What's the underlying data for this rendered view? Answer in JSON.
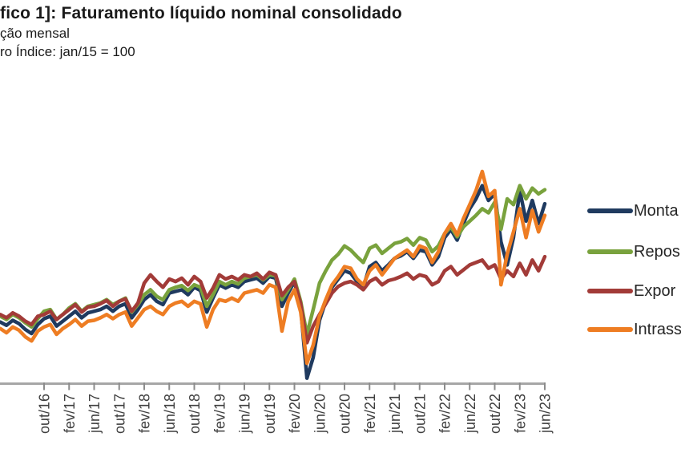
{
  "header": {
    "title": "fico 1]: Faturamento líquido nominal consolidado",
    "subtitle_line1": "ção mensal",
    "subtitle_line2": "ro Índice: jan/15 = 100"
  },
  "legend": {
    "position": "right",
    "items": [
      {
        "label": "Monta",
        "color": "#1f3a5f"
      },
      {
        "label": "Repos",
        "color": "#79a23d"
      },
      {
        "label": "Expor",
        "color": "#a23b38"
      },
      {
        "label": "Intrass",
        "color": "#ee7d23"
      }
    ]
  },
  "axis": {
    "line_color": "#a6a6a6",
    "tick_color": "#8c8c8c",
    "label_color": "#3f3f3f"
  },
  "chart_data": {
    "type": "line",
    "title": "fico 1]: Faturamento líquido nominal consolidado",
    "subtitle": "ção mensal",
    "index_base_note": "ro Índice: jan/15 = 100",
    "grid": false,
    "legend_position": "right",
    "ylim": [
      25,
      300
    ],
    "y_axis_visible": false,
    "x": [
      "mar/16",
      "abr/16",
      "mai/16",
      "jun/16",
      "jul/16",
      "ago/16",
      "set/16",
      "out/16",
      "nov/16",
      "dez/16",
      "jan/17",
      "fev/17",
      "mar/17",
      "abr/17",
      "mai/17",
      "jun/17",
      "jul/17",
      "ago/17",
      "set/17",
      "out/17",
      "nov/17",
      "dez/17",
      "jan/18",
      "fev/18",
      "mar/18",
      "abr/18",
      "mai/18",
      "jun/18",
      "jul/18",
      "ago/18",
      "set/18",
      "out/18",
      "nov/18",
      "dez/18",
      "jan/19",
      "fev/19",
      "mar/19",
      "abr/19",
      "mai/19",
      "jun/19",
      "jul/19",
      "ago/19",
      "set/19",
      "out/19",
      "nov/19",
      "dez/19",
      "jan/20",
      "fev/20",
      "mar/20",
      "abr/20",
      "mai/20",
      "jun/20",
      "jul/20",
      "ago/20",
      "set/20",
      "out/20",
      "nov/20",
      "dez/20",
      "jan/21",
      "fev/21",
      "mar/21",
      "abr/21",
      "mai/21",
      "jun/21",
      "jul/21",
      "ago/21",
      "set/21",
      "out/21",
      "nov/21",
      "dez/21",
      "jan/22",
      "fev/22",
      "mar/22",
      "abr/22",
      "mai/22",
      "jun/22",
      "jul/22",
      "ago/22",
      "set/22",
      "out/22",
      "nov/22",
      "dez/22",
      "jan/23",
      "fev/23",
      "mar/23",
      "abr/23",
      "mai/23",
      "jun/23"
    ],
    "x_tick_labels": [
      "out/16",
      "fev/17",
      "jun/17",
      "out/17",
      "fev/18",
      "jun/18",
      "out/18",
      "fev/19",
      "jun/19",
      "out/19",
      "fev/20",
      "jun/20",
      "out/20",
      "fev/21",
      "jun/21",
      "out/21",
      "fev/22",
      "jun/22",
      "out/22",
      "fev/23",
      "jun/23"
    ],
    "series": [
      {
        "name": "Monta",
        "color": "#1f3a5f",
        "values": [
          103,
          99,
          105,
          101,
          94,
          89,
          100,
          107,
          110,
          98,
          104,
          110,
          116,
          108,
          114,
          116,
          118,
          122,
          116,
          122,
          125,
          108,
          118,
          130,
          136,
          128,
          124,
          138,
          140,
          142,
          136,
          145,
          141,
          115,
          132,
          148,
          144,
          148,
          145,
          152,
          154,
          156,
          150,
          158,
          156,
          122,
          138,
          152,
          120,
          35,
          60,
          105,
          128,
          145,
          155,
          165,
          162,
          152,
          145,
          170,
          175,
          165,
          172,
          180,
          183,
          188,
          180,
          190,
          188,
          172,
          182,
          205,
          215,
          202,
          222,
          240,
          252,
          268,
          250,
          258,
          200,
          172,
          205,
          262,
          225,
          250,
          222,
          246
        ]
      },
      {
        "name": "Repos",
        "color": "#79a23d",
        "values": [
          110,
          106,
          112,
          108,
          102,
          97,
          107,
          116,
          118,
          106,
          112,
          120,
          125,
          116,
          122,
          124,
          126,
          130,
          124,
          128,
          132,
          115,
          124,
          136,
          142,
          134,
          130,
          142,
          145,
          147,
          141,
          148,
          145,
          122,
          136,
          152,
          148,
          152,
          149,
          156,
          158,
          160,
          154,
          160,
          159,
          130,
          142,
          155,
          128,
          88,
          118,
          150,
          165,
          178,
          185,
          195,
          190,
          182,
          175,
          192,
          196,
          186,
          192,
          198,
          200,
          204,
          196,
          205,
          202,
          188,
          195,
          210,
          218,
          206,
          218,
          225,
          232,
          240,
          235,
          248,
          215,
          252,
          245,
          268,
          252,
          265,
          258,
          263
        ]
      },
      {
        "name": "Expor",
        "color": "#a23b38",
        "values": [
          112,
          108,
          114,
          110,
          104,
          100,
          110,
          112,
          116,
          106,
          112,
          118,
          124,
          115,
          121,
          122,
          125,
          129,
          122,
          128,
          131,
          116,
          126,
          150,
          160,
          152,
          145,
          155,
          152,
          156,
          148,
          158,
          152,
          132,
          144,
          160,
          155,
          158,
          154,
          160,
          158,
          162,
          155,
          163,
          160,
          135,
          145,
          152,
          125,
          78,
          98,
          112,
          125,
          138,
          146,
          150,
          152,
          148,
          142,
          152,
          156,
          148,
          153,
          155,
          158,
          162,
          155,
          160,
          158,
          148,
          152,
          165,
          170,
          160,
          166,
          172,
          175,
          178,
          168,
          172,
          155,
          165,
          158,
          174,
          160,
          178,
          165,
          182
        ]
      },
      {
        "name": "Intrass",
        "color": "#ee7d23",
        "values": [
          95,
          90,
          97,
          93,
          85,
          80,
          92,
          97,
          100,
          88,
          95,
          100,
          106,
          98,
          104,
          105,
          108,
          112,
          107,
          112,
          115,
          98,
          108,
          118,
          122,
          116,
          112,
          122,
          126,
          128,
          122,
          128,
          125,
          97,
          118,
          130,
          128,
          132,
          128,
          138,
          140,
          142,
          138,
          148,
          145,
          92,
          128,
          142,
          115,
          53,
          75,
          110,
          130,
          148,
          158,
          170,
          168,
          155,
          148,
          165,
          172,
          160,
          170,
          180,
          185,
          190,
          182,
          195,
          192,
          175,
          188,
          210,
          222,
          208,
          228,
          245,
          262,
          285,
          255,
          262,
          148,
          185,
          212,
          240,
          205,
          238,
          212,
          232
        ]
      }
    ]
  }
}
